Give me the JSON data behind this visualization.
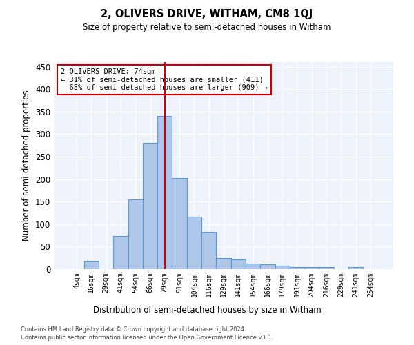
{
  "title": "2, OLIVERS DRIVE, WITHAM, CM8 1QJ",
  "subtitle": "Size of property relative to semi-detached houses in Witham",
  "xlabel": "Distribution of semi-detached houses by size in Witham",
  "ylabel": "Number of semi-detached properties",
  "categories": [
    "4sqm",
    "16sqm",
    "29sqm",
    "41sqm",
    "54sqm",
    "66sqm",
    "79sqm",
    "91sqm",
    "104sqm",
    "116sqm",
    "129sqm",
    "141sqm",
    "154sqm",
    "166sqm",
    "179sqm",
    "191sqm",
    "204sqm",
    "216sqm",
    "229sqm",
    "241sqm",
    "254sqm"
  ],
  "values": [
    0,
    19,
    0,
    74,
    155,
    281,
    340,
    202,
    116,
    83,
    25,
    21,
    13,
    10,
    7,
    4,
    4,
    4,
    0,
    5,
    0
  ],
  "bar_color": "#aec6e8",
  "bar_edge_color": "#5b9bd5",
  "property_label": "2 OLIVERS DRIVE: 74sqm",
  "smaller_pct": "31%",
  "smaller_count": 411,
  "larger_pct": "68%",
  "larger_count": 909,
  "vline_x_index": 6,
  "vline_color": "#cc0000",
  "annotation_box_color": "#cc0000",
  "background_color": "#eef3fb",
  "grid_color": "#ffffff",
  "ylim": [
    0,
    460
  ],
  "yticks": [
    0,
    50,
    100,
    150,
    200,
    250,
    300,
    350,
    400,
    450
  ],
  "footnote1": "Contains HM Land Registry data © Crown copyright and database right 2024.",
  "footnote2": "Contains public sector information licensed under the Open Government Licence v3.0."
}
